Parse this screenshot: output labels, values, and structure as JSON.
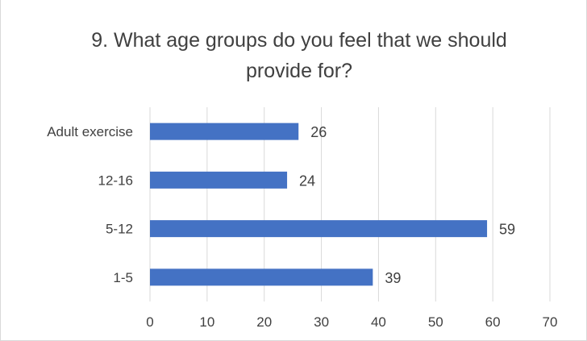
{
  "chart_data": {
    "type": "bar",
    "orientation": "horizontal",
    "title": "9. What age groups do you feel that we should provide for?",
    "categories": [
      "Adult exercise",
      "12-16",
      "5-12",
      "1-5"
    ],
    "values": [
      26,
      24,
      59,
      39
    ],
    "xlim": [
      0,
      70
    ],
    "xticks": [
      0,
      10,
      20,
      30,
      40,
      50,
      60,
      70
    ],
    "gridlines": "vertical",
    "legend": "none",
    "bar_color": "#4472c4"
  }
}
